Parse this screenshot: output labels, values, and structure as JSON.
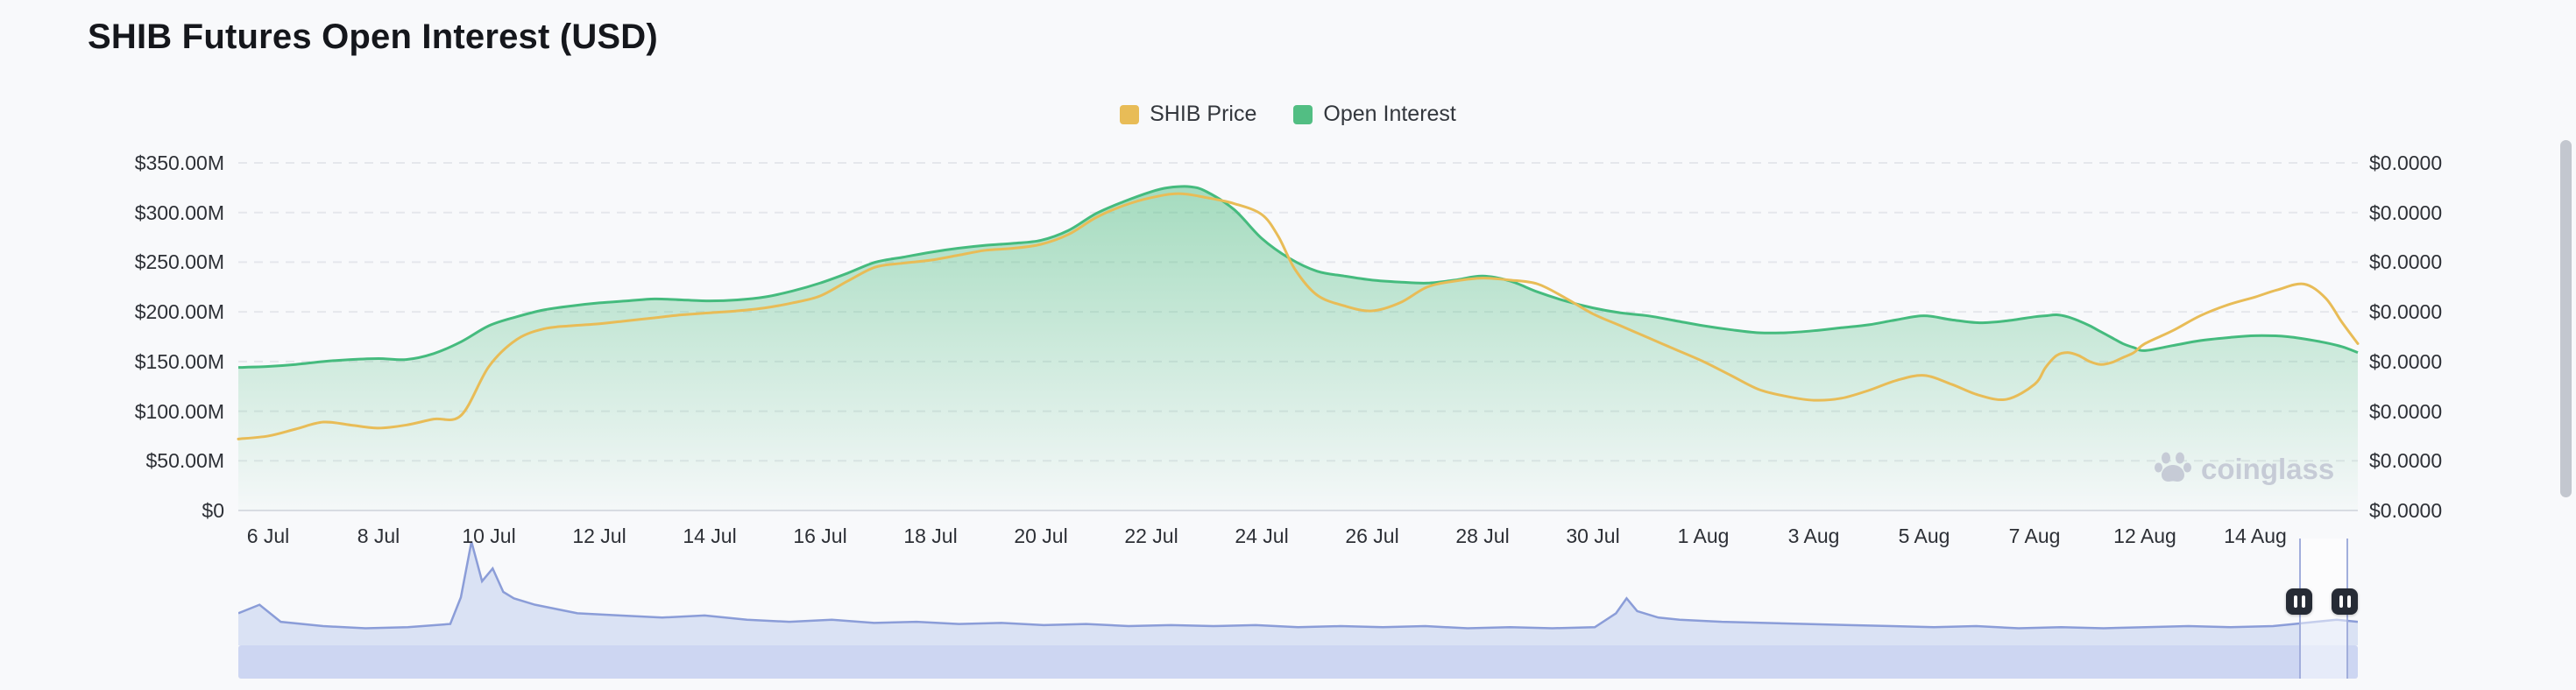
{
  "header": {
    "title": "SHIB Futures Open Interest (USD)"
  },
  "legend": {
    "items": [
      {
        "label": "SHIB Price",
        "color": "#E8BC57"
      },
      {
        "label": "Open Interest",
        "color": "#52BE83"
      }
    ]
  },
  "watermark": {
    "text": "coinglass"
  },
  "colors": {
    "background": "#F8F9FB",
    "title_text": "#15171C",
    "axis_text": "#2D3036",
    "gridline": "#E5E7EC",
    "open_interest_green": "#45BB7E",
    "shib_price_gold": "#E8BC57",
    "navigator_lavender": "#CDD6F2",
    "handle_dark": "#262B35"
  },
  "chart_data": {
    "type": "area+line",
    "title": "SHIB Futures Open Interest (USD)",
    "legend_position": "top-center",
    "grid": "horizontal-dashed",
    "y_left": {
      "tick_labels": [
        "$350.00M",
        "$300.00M",
        "$250.00M",
        "$200.00M",
        "$150.00M",
        "$100.00M",
        "$50.00M",
        "$0"
      ],
      "tick_values": [
        350,
        300,
        250,
        200,
        150,
        100,
        50,
        0
      ],
      "unit": "million USD",
      "range": [
        0,
        350
      ]
    },
    "y_right": {
      "tick_labels": [
        "$0.0000",
        "$0.0000",
        "$0.0000",
        "$0.0000",
        "$0.0000",
        "$0.0000",
        "$0.0000",
        "$0.0000"
      ]
    },
    "x_ticks": [
      {
        "label": "6 Jul",
        "day": 0
      },
      {
        "label": "8 Jul",
        "day": 2
      },
      {
        "label": "10 Jul",
        "day": 4
      },
      {
        "label": "12 Jul",
        "day": 6
      },
      {
        "label": "14 Jul",
        "day": 8
      },
      {
        "label": "16 Jul",
        "day": 10
      },
      {
        "label": "18 Jul",
        "day": 12
      },
      {
        "label": "20 Jul",
        "day": 14
      },
      {
        "label": "22 Jul",
        "day": 16
      },
      {
        "label": "24 Jul",
        "day": 18
      },
      {
        "label": "26 Jul",
        "day": 20
      },
      {
        "label": "28 Jul",
        "day": 22
      },
      {
        "label": "30 Jul",
        "day": 24
      },
      {
        "label": "1 Aug",
        "day": 26
      },
      {
        "label": "3 Aug",
        "day": 28
      },
      {
        "label": "5 Aug",
        "day": 30
      },
      {
        "label": "7 Aug",
        "day": 32
      },
      {
        "label": "12 Aug",
        "day": 37
      },
      {
        "label": "14 Aug",
        "day": 39
      }
    ],
    "day_to_x_anchors": [
      [
        -0.54,
        0
      ],
      [
        0,
        0.01406
      ],
      [
        32,
        0.84746
      ],
      [
        37,
        0.89955
      ],
      [
        39,
        0.95163
      ],
      [
        40.9,
        1
      ]
    ],
    "series": [
      {
        "name": "Open Interest",
        "type": "area",
        "value_axis": "left",
        "value_unit": "million USD",
        "color": "#45BB7E",
        "fill_top": "rgba(82,190,131,0.5)",
        "fill_bottom": "rgba(82,190,131,0.02)",
        "points": [
          [
            -0.54,
            144
          ],
          [
            0,
            145
          ],
          [
            0.5,
            147
          ],
          [
            1,
            150
          ],
          [
            1.5,
            152
          ],
          [
            2,
            153
          ],
          [
            2.5,
            152
          ],
          [
            3,
            158
          ],
          [
            3.5,
            170
          ],
          [
            4,
            186
          ],
          [
            4.5,
            195
          ],
          [
            5,
            202
          ],
          [
            5.5,
            206
          ],
          [
            6,
            209
          ],
          [
            6.5,
            211
          ],
          [
            7,
            213
          ],
          [
            7.5,
            212
          ],
          [
            8,
            211
          ],
          [
            8.5,
            212
          ],
          [
            9,
            215
          ],
          [
            9.5,
            221
          ],
          [
            10,
            229
          ],
          [
            10.5,
            239
          ],
          [
            11,
            250
          ],
          [
            11.5,
            255
          ],
          [
            12,
            260
          ],
          [
            12.5,
            264
          ],
          [
            13,
            267
          ],
          [
            13.5,
            269
          ],
          [
            14,
            272
          ],
          [
            14.5,
            282
          ],
          [
            15,
            299
          ],
          [
            15.5,
            311
          ],
          [
            16,
            321
          ],
          [
            16.3,
            325
          ],
          [
            16.7,
            326
          ],
          [
            17,
            321
          ],
          [
            17.5,
            303
          ],
          [
            18,
            274
          ],
          [
            18.5,
            254
          ],
          [
            19,
            241
          ],
          [
            19.5,
            236
          ],
          [
            20,
            232
          ],
          [
            20.5,
            230
          ],
          [
            21,
            229
          ],
          [
            21.5,
            232
          ],
          [
            22,
            236
          ],
          [
            22.5,
            231
          ],
          [
            23,
            220
          ],
          [
            23.5,
            211
          ],
          [
            24,
            204
          ],
          [
            24.5,
            199
          ],
          [
            25,
            196
          ],
          [
            25.5,
            191
          ],
          [
            26,
            186
          ],
          [
            26.5,
            182
          ],
          [
            27,
            179
          ],
          [
            27.5,
            179
          ],
          [
            28,
            181
          ],
          [
            28.5,
            184
          ],
          [
            29,
            187
          ],
          [
            29.5,
            192
          ],
          [
            30,
            196
          ],
          [
            30.5,
            192
          ],
          [
            31,
            189
          ],
          [
            31.5,
            191
          ],
          [
            32,
            195
          ],
          [
            32.5,
            196
          ],
          [
            33,
            197
          ],
          [
            33.5,
            195
          ],
          [
            34,
            191
          ],
          [
            34.5,
            186
          ],
          [
            35,
            180
          ],
          [
            35.5,
            174
          ],
          [
            36,
            168
          ],
          [
            36.5,
            164
          ],
          [
            37,
            161
          ],
          [
            37.5,
            166
          ],
          [
            38,
            171
          ],
          [
            38.5,
            174
          ],
          [
            39,
            176
          ],
          [
            39.6,
            175
          ],
          [
            40.2,
            170
          ],
          [
            40.6,
            165
          ],
          [
            40.9,
            159
          ]
        ]
      },
      {
        "name": "SHIB Price",
        "type": "line",
        "value_axis": "right",
        "points_scale": "plotted against left-axis scale for recreation (right-axis labels all display $0.0000)",
        "color": "#E8BC57",
        "points": [
          [
            -0.54,
            72
          ],
          [
            0,
            75
          ],
          [
            0.5,
            82
          ],
          [
            1,
            89
          ],
          [
            1.5,
            86
          ],
          [
            2,
            83
          ],
          [
            2.5,
            86
          ],
          [
            3,
            92
          ],
          [
            3.5,
            96
          ],
          [
            4,
            145
          ],
          [
            4.5,
            172
          ],
          [
            5,
            183
          ],
          [
            5.5,
            186
          ],
          [
            6,
            188
          ],
          [
            6.5,
            191
          ],
          [
            7,
            194
          ],
          [
            7.5,
            197
          ],
          [
            8,
            199
          ],
          [
            8.5,
            201
          ],
          [
            9,
            204
          ],
          [
            9.5,
            209
          ],
          [
            10,
            216
          ],
          [
            10.5,
            231
          ],
          [
            11,
            245
          ],
          [
            11.5,
            249
          ],
          [
            12,
            252
          ],
          [
            12.5,
            257
          ],
          [
            13,
            262
          ],
          [
            13.5,
            264
          ],
          [
            14,
            268
          ],
          [
            14.5,
            278
          ],
          [
            15,
            295
          ],
          [
            15.5,
            307
          ],
          [
            16,
            315
          ],
          [
            16.5,
            319
          ],
          [
            17,
            315
          ],
          [
            17.5,
            309
          ],
          [
            18,
            298
          ],
          [
            18.3,
            276
          ],
          [
            18.6,
            243
          ],
          [
            19,
            217
          ],
          [
            19.5,
            206
          ],
          [
            20,
            201
          ],
          [
            20.5,
            209
          ],
          [
            21,
            225
          ],
          [
            21.5,
            231
          ],
          [
            22,
            234
          ],
          [
            22.5,
            232
          ],
          [
            23,
            228
          ],
          [
            23.5,
            214
          ],
          [
            24,
            198
          ],
          [
            24.5,
            186
          ],
          [
            25,
            174
          ],
          [
            25.5,
            162
          ],
          [
            26,
            150
          ],
          [
            26.5,
            136
          ],
          [
            27,
            122
          ],
          [
            27.5,
            115
          ],
          [
            28,
            111
          ],
          [
            28.5,
            113
          ],
          [
            29,
            121
          ],
          [
            29.5,
            131
          ],
          [
            30,
            136
          ],
          [
            30.5,
            127
          ],
          [
            31,
            116
          ],
          [
            31.5,
            112
          ],
          [
            32,
            127
          ],
          [
            32.5,
            144
          ],
          [
            33,
            156
          ],
          [
            33.5,
            159
          ],
          [
            34,
            156
          ],
          [
            34.5,
            150
          ],
          [
            35,
            147
          ],
          [
            35.5,
            149
          ],
          [
            36,
            154
          ],
          [
            36.5,
            159
          ],
          [
            37,
            168
          ],
          [
            37.5,
            181
          ],
          [
            38,
            196
          ],
          [
            38.5,
            207
          ],
          [
            39,
            215
          ],
          [
            39.4,
            222
          ],
          [
            39.9,
            228
          ],
          [
            40.3,
            214
          ],
          [
            40.6,
            190
          ],
          [
            40.9,
            168
          ]
        ]
      }
    ],
    "navigator": {
      "color_line": "#8B9DD8",
      "color_fill": "rgba(199,210,240,0.6)",
      "band_color": "#CDD6F2",
      "selection": {
        "from": 0.9724,
        "to": 0.9938
      },
      "points": [
        [
          0,
          0.3
        ],
        [
          0.01,
          0.38
        ],
        [
          0.02,
          0.22
        ],
        [
          0.04,
          0.18
        ],
        [
          0.06,
          0.16
        ],
        [
          0.08,
          0.17
        ],
        [
          0.1,
          0.2
        ],
        [
          0.105,
          0.45
        ],
        [
          0.11,
          0.97
        ],
        [
          0.115,
          0.6
        ],
        [
          0.12,
          0.72
        ],
        [
          0.125,
          0.5
        ],
        [
          0.13,
          0.44
        ],
        [
          0.14,
          0.38
        ],
        [
          0.15,
          0.34
        ],
        [
          0.16,
          0.3
        ],
        [
          0.18,
          0.28
        ],
        [
          0.2,
          0.26
        ],
        [
          0.22,
          0.28
        ],
        [
          0.24,
          0.24
        ],
        [
          0.26,
          0.22
        ],
        [
          0.28,
          0.24
        ],
        [
          0.3,
          0.21
        ],
        [
          0.32,
          0.22
        ],
        [
          0.34,
          0.2
        ],
        [
          0.36,
          0.21
        ],
        [
          0.38,
          0.19
        ],
        [
          0.4,
          0.2
        ],
        [
          0.42,
          0.18
        ],
        [
          0.44,
          0.19
        ],
        [
          0.46,
          0.18
        ],
        [
          0.48,
          0.19
        ],
        [
          0.5,
          0.17
        ],
        [
          0.52,
          0.18
        ],
        [
          0.54,
          0.17
        ],
        [
          0.56,
          0.18
        ],
        [
          0.58,
          0.16
        ],
        [
          0.6,
          0.17
        ],
        [
          0.62,
          0.16
        ],
        [
          0.64,
          0.17
        ],
        [
          0.65,
          0.3
        ],
        [
          0.655,
          0.44
        ],
        [
          0.66,
          0.32
        ],
        [
          0.67,
          0.26
        ],
        [
          0.68,
          0.24
        ],
        [
          0.7,
          0.22
        ],
        [
          0.72,
          0.21
        ],
        [
          0.74,
          0.2
        ],
        [
          0.76,
          0.19
        ],
        [
          0.78,
          0.18
        ],
        [
          0.8,
          0.17
        ],
        [
          0.82,
          0.18
        ],
        [
          0.84,
          0.16
        ],
        [
          0.86,
          0.17
        ],
        [
          0.88,
          0.16
        ],
        [
          0.9,
          0.17
        ],
        [
          0.92,
          0.18
        ],
        [
          0.94,
          0.17
        ],
        [
          0.96,
          0.18
        ],
        [
          0.97,
          0.2
        ],
        [
          0.98,
          0.22
        ],
        [
          0.99,
          0.24
        ],
        [
          1,
          0.22
        ]
      ]
    }
  }
}
